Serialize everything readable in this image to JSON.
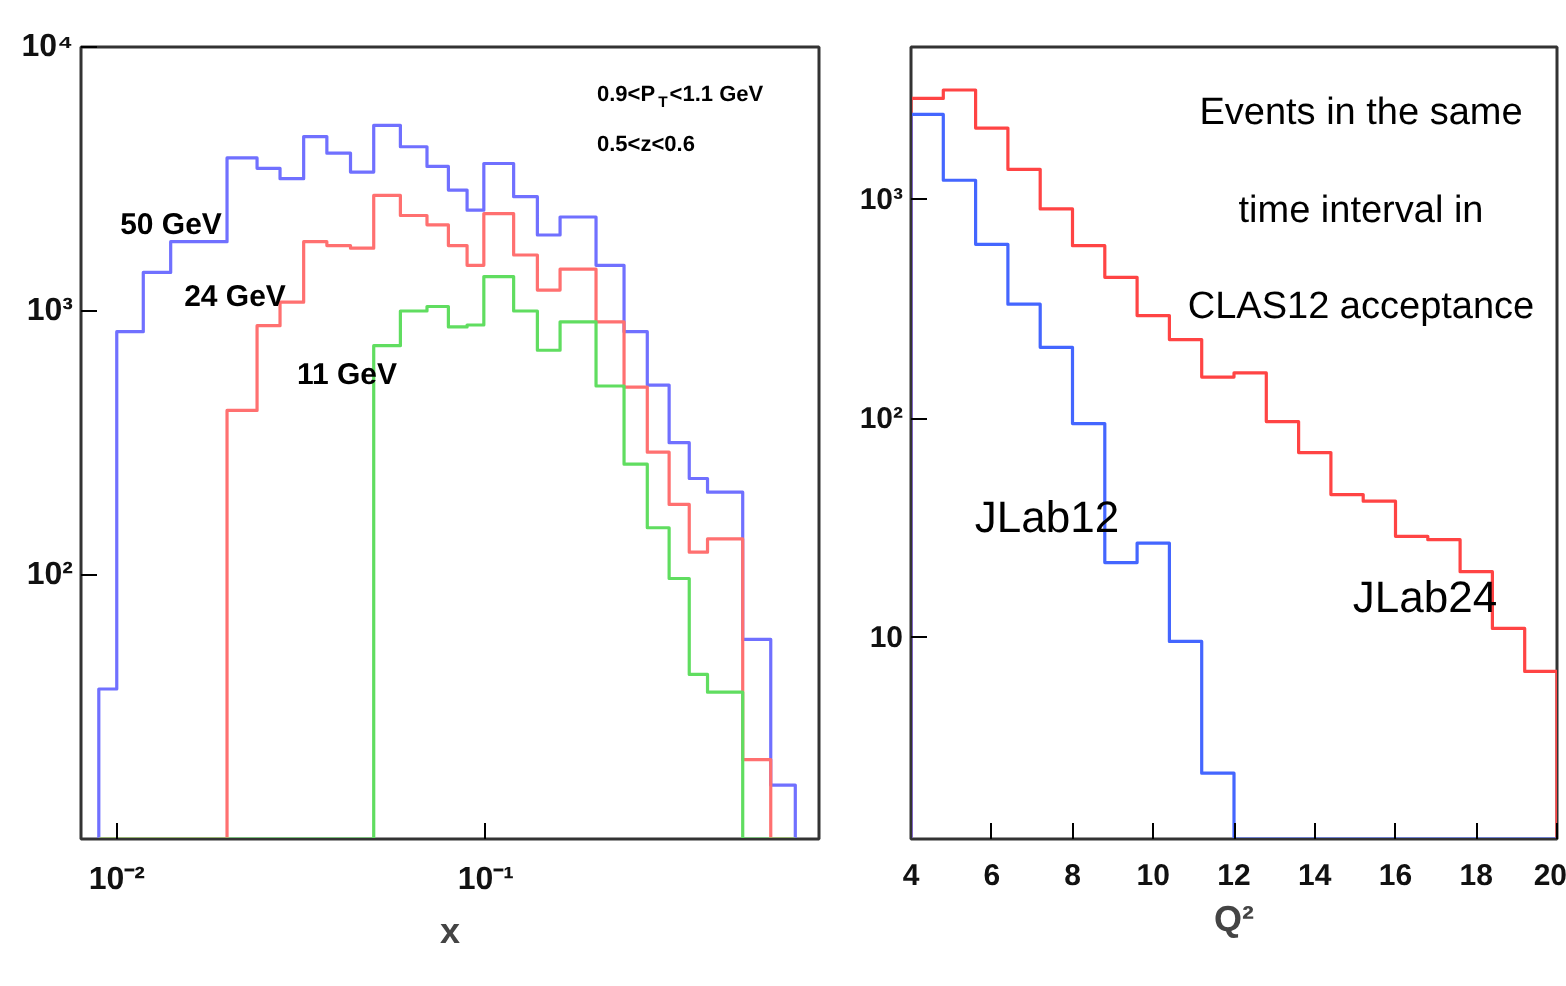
{
  "chart_data": [
    {
      "type": "histogram",
      "xlabel": "x",
      "log": "xy",
      "xlim": [
        0.008,
        0.8
      ],
      "ylim": [
        10,
        10000
      ],
      "xticks": [
        {
          "value": 0.01,
          "label": "10⁻²"
        },
        {
          "value": 0.1,
          "label": "10⁻¹"
        }
      ],
      "yticks": [
        {
          "value": 100,
          "label": "10²"
        },
        {
          "value": 1000,
          "label": "10³"
        },
        {
          "value": 10000,
          "label": "10⁴"
        }
      ],
      "bins": [
        0.00894,
        0.01,
        0.0118,
        0.014,
        0.0166,
        0.0199,
        0.024,
        0.0277,
        0.0321,
        0.0371,
        0.043,
        0.0497,
        0.0587,
        0.0693,
        0.0792,
        0.089,
        0.0988,
        0.119,
        0.138,
        0.159,
        0.199,
        0.237,
        0.274,
        0.314,
        0.356,
        0.399,
        0.497,
        0.592,
        0.69
      ],
      "series": [
        {
          "color": "#7070ff",
          "values": [
            37,
            835,
            1400,
            1830,
            1830,
            3800,
            3470,
            3170,
            4580,
            3960,
            3360,
            5050,
            4190,
            3530,
            2870,
            2410,
            3620,
            2710,
            1940,
            2270,
            1490,
            835,
            524,
            317,
            232,
            206,
            57,
            16
          ]
        },
        {
          "color": "#ff7070",
          "values": [
            null,
            null,
            null,
            null,
            null,
            420,
            880,
            1080,
            1830,
            1770,
            1730,
            2740,
            2300,
            2120,
            1770,
            1490,
            2340,
            1630,
            1200,
            1440,
            910,
            515,
            292,
            185,
            122,
            137,
            20,
            null
          ]
        },
        {
          "color": "#60dd60",
          "values": [
            null,
            null,
            null,
            null,
            null,
            null,
            null,
            null,
            null,
            null,
            null,
            739,
            1000,
            1040,
            870,
            885,
            1350,
            1000,
            710,
            910,
            520,
            263,
            151,
            97,
            42,
            36,
            null,
            null
          ]
        }
      ],
      "annotations": [
        "50 GeV",
        "24 GeV",
        "11 GeV",
        "0.9<P$_{T}$<1.1 GeV",
        "0.5<z<0.6"
      ]
    },
    {
      "type": "histogram",
      "xlabel": "Q²",
      "log": "y",
      "xlim": [
        4,
        20
      ],
      "ylim": [
        1.2,
        5000
      ],
      "xticks": [
        4,
        6,
        8,
        10,
        12,
        14,
        16,
        18,
        20
      ],
      "yticks": [
        10,
        {
          "value": 100,
          "label": "10²"
        },
        {
          "value": 1000,
          "label": "10³"
        }
      ],
      "bins": [
        4,
        4.8,
        5.6,
        6.4,
        7.2,
        8,
        8.8,
        9.6,
        10.4,
        11.2,
        12,
        12.8,
        13.6,
        14.4,
        15.2,
        16,
        16.8,
        17.6,
        18.4,
        19.2,
        20
      ],
      "series": [
        {
          "color": "#ff4444",
          "values": [
            2910,
            3180,
            2130,
            1380,
            910,
            618,
            443,
            296,
            230,
            155,
            162,
            97,
            70,
            45,
            42,
            29,
            28,
            20,
            11,
            7
          ]
        },
        {
          "color": "#4466ff",
          "values": [
            2460,
            1230,
            627,
            334,
            212,
            95,
            22,
            27,
            9.6,
            2.4,
            null,
            null,
            null,
            null,
            null,
            null,
            null,
            null,
            null,
            null
          ]
        }
      ],
      "annotations": [
        "JLab12",
        "JLab24",
        "Events in the same time interval in CLAS12 acceptance"
      ]
    }
  ]
}
